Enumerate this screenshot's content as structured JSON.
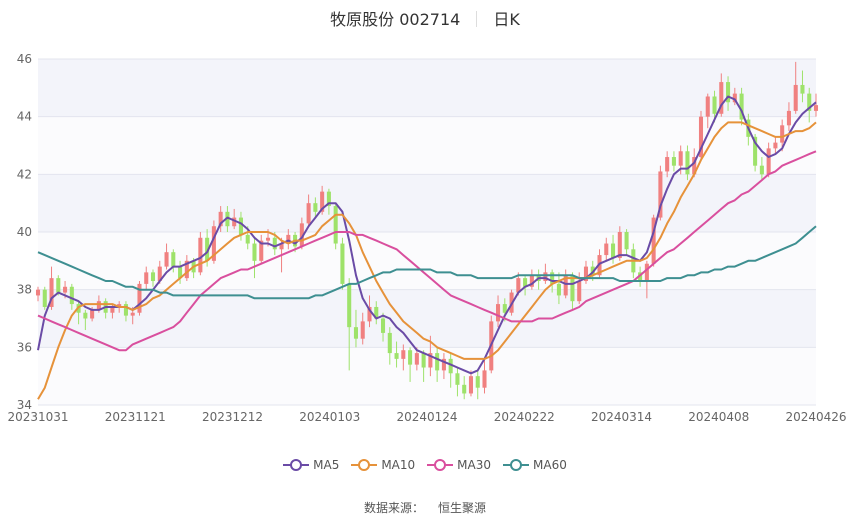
{
  "header": {
    "stock": "牧原股份 002714",
    "period": "日K"
  },
  "footer": {
    "source_label": "数据来源：",
    "source_name": "恒生聚源"
  },
  "chart_data": {
    "type": "candlestick",
    "title": "牧原股份 002714 日K",
    "ylim": [
      34,
      46
    ],
    "yticks": [
      34,
      36,
      38,
      40,
      42,
      44,
      46
    ],
    "xtick_labels": [
      "20231031",
      "20231121",
      "20231212",
      "20240103",
      "20240124",
      "20240222",
      "20240314",
      "20240408",
      "20240426"
    ],
    "up_color": "#f08080",
    "down_color": "#9ee26a",
    "candles": [
      [
        37.8,
        38.0,
        37.6,
        38.1
      ],
      [
        38.0,
        37.4,
        37.3,
        38.1
      ],
      [
        37.4,
        38.4,
        37.3,
        38.8
      ],
      [
        38.4,
        37.9,
        37.8,
        38.5
      ],
      [
        37.9,
        38.1,
        37.7,
        38.3
      ],
      [
        38.1,
        37.5,
        37.3,
        38.2
      ],
      [
        37.5,
        37.2,
        36.8,
        37.6
      ],
      [
        37.2,
        37.0,
        36.6,
        37.3
      ],
      [
        37.0,
        37.3,
        36.9,
        37.4
      ],
      [
        37.3,
        37.6,
        37.2,
        37.8
      ],
      [
        37.6,
        37.2,
        37.0,
        37.7
      ],
      [
        37.2,
        37.4,
        37.0,
        37.5
      ],
      [
        37.4,
        37.5,
        37.2,
        37.6
      ],
      [
        37.5,
        37.1,
        36.9,
        37.6
      ],
      [
        37.1,
        37.2,
        36.8,
        37.4
      ],
      [
        37.2,
        38.2,
        37.1,
        38.3
      ],
      [
        38.2,
        38.6,
        38.0,
        38.8
      ],
      [
        38.6,
        38.3,
        38.1,
        38.7
      ],
      [
        38.3,
        38.8,
        38.2,
        39.0
      ],
      [
        38.8,
        39.3,
        38.7,
        39.6
      ],
      [
        39.3,
        38.8,
        38.6,
        39.4
      ],
      [
        38.8,
        38.4,
        38.2,
        39.0
      ],
      [
        38.4,
        39.0,
        38.3,
        39.2
      ],
      [
        39.0,
        38.6,
        38.4,
        39.1
      ],
      [
        38.6,
        39.8,
        38.5,
        40.0
      ],
      [
        39.8,
        39.0,
        38.8,
        40.1
      ],
      [
        39.0,
        40.2,
        38.9,
        40.4
      ],
      [
        40.2,
        40.7,
        40.0,
        40.9
      ],
      [
        40.7,
        40.2,
        40.0,
        40.9
      ],
      [
        40.2,
        40.5,
        40.1,
        40.8
      ],
      [
        40.5,
        39.9,
        39.7,
        40.7
      ],
      [
        39.9,
        39.6,
        39.4,
        40.2
      ],
      [
        39.6,
        39.0,
        38.4,
        39.8
      ],
      [
        39.0,
        39.7,
        38.9,
        39.9
      ],
      [
        39.7,
        39.8,
        39.5,
        40.1
      ],
      [
        39.8,
        39.4,
        39.2,
        40.0
      ],
      [
        39.4,
        39.6,
        38.6,
        39.8
      ],
      [
        39.6,
        39.9,
        39.4,
        40.1
      ],
      [
        39.9,
        39.5,
        39.3,
        40.0
      ],
      [
        39.5,
        40.3,
        39.4,
        40.5
      ],
      [
        40.3,
        41.0,
        40.2,
        41.3
      ],
      [
        41.0,
        40.7,
        40.5,
        41.2
      ],
      [
        40.7,
        41.4,
        40.6,
        41.6
      ],
      [
        41.4,
        40.9,
        40.6,
        41.5
      ],
      [
        40.9,
        39.6,
        39.4,
        41.0
      ],
      [
        39.6,
        38.2,
        38.0,
        39.8
      ],
      [
        38.2,
        36.7,
        35.2,
        38.4
      ],
      [
        36.7,
        36.3,
        36.0,
        37.3
      ],
      [
        36.3,
        36.9,
        36.1,
        37.2
      ],
      [
        36.9,
        37.4,
        36.7,
        37.8
      ],
      [
        37.4,
        37.0,
        36.8,
        37.6
      ],
      [
        37.0,
        36.5,
        36.2,
        37.2
      ],
      [
        36.5,
        35.8,
        35.4,
        36.7
      ],
      [
        35.8,
        35.6,
        35.3,
        36.2
      ],
      [
        35.6,
        35.9,
        35.2,
        36.1
      ],
      [
        35.9,
        35.4,
        34.8,
        36.0
      ],
      [
        35.4,
        35.8,
        35.2,
        36.0
      ],
      [
        35.8,
        35.3,
        34.8,
        35.9
      ],
      [
        35.3,
        35.8,
        35.0,
        36.4
      ],
      [
        35.8,
        35.2,
        34.8,
        36.0
      ],
      [
        35.2,
        35.6,
        34.9,
        35.8
      ],
      [
        35.6,
        35.1,
        34.6,
        35.8
      ],
      [
        35.1,
        34.7,
        34.3,
        35.3
      ],
      [
        34.7,
        34.4,
        34.2,
        35.0
      ],
      [
        34.4,
        35.0,
        34.3,
        35.2
      ],
      [
        35.0,
        34.6,
        34.2,
        35.2
      ],
      [
        34.6,
        35.2,
        34.4,
        35.6
      ],
      [
        35.2,
        36.9,
        35.1,
        37.1
      ],
      [
        36.9,
        37.5,
        36.7,
        37.8
      ],
      [
        37.5,
        37.2,
        36.9,
        37.7
      ],
      [
        37.2,
        37.9,
        37.1,
        38.0
      ],
      [
        37.9,
        38.4,
        37.8,
        38.6
      ],
      [
        38.4,
        38.1,
        37.8,
        38.5
      ],
      [
        38.1,
        38.5,
        38.0,
        38.7
      ],
      [
        38.5,
        38.3,
        38.0,
        38.7
      ],
      [
        38.3,
        38.6,
        38.2,
        38.9
      ],
      [
        38.6,
        38.2,
        37.9,
        38.7
      ],
      [
        38.2,
        37.8,
        37.5,
        38.6
      ],
      [
        37.8,
        38.5,
        37.7,
        38.7
      ],
      [
        38.5,
        37.6,
        37.3,
        38.6
      ],
      [
        37.6,
        38.3,
        37.5,
        38.6
      ],
      [
        38.3,
        38.8,
        38.2,
        39.0
      ],
      [
        38.8,
        38.5,
        38.3,
        39.0
      ],
      [
        38.5,
        39.2,
        38.4,
        39.4
      ],
      [
        39.2,
        39.6,
        39.0,
        39.8
      ],
      [
        39.6,
        39.1,
        38.9,
        39.9
      ],
      [
        39.1,
        40.0,
        39.0,
        40.2
      ],
      [
        40.0,
        39.4,
        39.2,
        40.1
      ],
      [
        39.4,
        38.6,
        38.4,
        39.6
      ],
      [
        38.6,
        38.3,
        38.1,
        38.8
      ],
      [
        38.3,
        38.9,
        37.7,
        39.0
      ],
      [
        38.9,
        40.5,
        38.8,
        40.6
      ],
      [
        40.5,
        42.1,
        40.4,
        42.3
      ],
      [
        42.1,
        42.6,
        41.9,
        42.8
      ],
      [
        42.6,
        42.3,
        42.1,
        42.8
      ],
      [
        42.3,
        42.8,
        42.0,
        43.0
      ],
      [
        42.8,
        42.0,
        41.8,
        43.0
      ],
      [
        42.0,
        42.6,
        41.9,
        42.9
      ],
      [
        42.6,
        44.0,
        42.5,
        44.2
      ],
      [
        44.0,
        44.7,
        43.6,
        44.8
      ],
      [
        44.7,
        44.1,
        43.8,
        44.9
      ],
      [
        44.1,
        45.2,
        44.0,
        45.5
      ],
      [
        45.2,
        44.5,
        44.2,
        45.4
      ],
      [
        44.5,
        44.8,
        44.4,
        45.0
      ],
      [
        44.8,
        43.9,
        43.7,
        45.0
      ],
      [
        43.9,
        43.3,
        43.0,
        44.1
      ],
      [
        43.3,
        42.3,
        42.1,
        43.4
      ],
      [
        42.3,
        42.0,
        41.8,
        42.6
      ],
      [
        42.0,
        42.9,
        41.9,
        43.1
      ],
      [
        42.9,
        43.1,
        42.7,
        43.3
      ],
      [
        43.1,
        43.7,
        42.8,
        43.9
      ],
      [
        43.7,
        44.2,
        43.5,
        44.5
      ],
      [
        44.2,
        45.1,
        44.1,
        45.9
      ],
      [
        45.1,
        44.8,
        44.5,
        45.6
      ],
      [
        44.8,
        44.2,
        43.8,
        45.0
      ],
      [
        44.2,
        44.4,
        44.0,
        44.8
      ]
    ],
    "series": [
      {
        "name": "MA5",
        "color": "#6a4ba6",
        "values": [
          35.9,
          37.1,
          37.7,
          37.9,
          37.8,
          37.7,
          37.6,
          37.4,
          37.3,
          37.3,
          37.4,
          37.4,
          37.4,
          37.4,
          37.3,
          37.5,
          37.7,
          38.0,
          38.3,
          38.6,
          38.8,
          38.8,
          38.9,
          39.0,
          39.1,
          39.3,
          39.8,
          40.3,
          40.5,
          40.4,
          40.3,
          40.1,
          39.8,
          39.6,
          39.6,
          39.5,
          39.6,
          39.7,
          39.6,
          39.8,
          40.2,
          40.5,
          40.8,
          41.0,
          41.0,
          40.7,
          39.7,
          38.5,
          37.7,
          37.3,
          37.0,
          37.1,
          37.0,
          36.7,
          36.5,
          36.2,
          35.9,
          35.8,
          35.7,
          35.6,
          35.5,
          35.4,
          35.3,
          35.2,
          35.1,
          35.2,
          35.6,
          36.1,
          36.6,
          37.1,
          37.5,
          37.9,
          38.1,
          38.2,
          38.4,
          38.4,
          38.3,
          38.3,
          38.2,
          38.2,
          38.3,
          38.4,
          38.6,
          38.9,
          39.0,
          39.1,
          39.2,
          39.2,
          39.1,
          39.0,
          39.3,
          40.0,
          40.9,
          41.5,
          42.0,
          42.2,
          42.2,
          42.4,
          42.9,
          43.4,
          43.9,
          44.4,
          44.7,
          44.6,
          44.2,
          43.6,
          43.1,
          42.8,
          42.6,
          42.7,
          42.9,
          43.4,
          43.8,
          44.1,
          44.3,
          44.5
        ]
      },
      {
        "name": "MA10",
        "color": "#e6923a",
        "values": [
          34.2,
          34.6,
          35.3,
          36.0,
          36.6,
          37.1,
          37.4,
          37.5,
          37.5,
          37.5,
          37.5,
          37.5,
          37.4,
          37.4,
          37.3,
          37.4,
          37.5,
          37.7,
          37.8,
          38.0,
          38.2,
          38.4,
          38.6,
          38.8,
          38.9,
          39.0,
          39.2,
          39.4,
          39.6,
          39.8,
          39.9,
          40.0,
          40.0,
          40.0,
          40.0,
          39.9,
          39.7,
          39.6,
          39.7,
          39.7,
          39.8,
          39.9,
          40.2,
          40.4,
          40.6,
          40.6,
          40.3,
          39.9,
          39.3,
          38.8,
          38.3,
          37.9,
          37.5,
          37.2,
          36.9,
          36.7,
          36.5,
          36.3,
          36.2,
          36.0,
          35.9,
          35.8,
          35.7,
          35.6,
          35.6,
          35.6,
          35.6,
          35.7,
          35.9,
          36.2,
          36.5,
          36.8,
          37.1,
          37.4,
          37.7,
          38.0,
          38.2,
          38.3,
          38.4,
          38.4,
          38.4,
          38.4,
          38.5,
          38.6,
          38.7,
          38.8,
          38.9,
          39.0,
          39.0,
          39.0,
          39.1,
          39.4,
          39.8,
          40.3,
          40.7,
          41.2,
          41.6,
          42.0,
          42.5,
          42.9,
          43.3,
          43.6,
          43.8,
          43.8,
          43.8,
          43.7,
          43.6,
          43.5,
          43.4,
          43.3,
          43.3,
          43.4,
          43.5,
          43.5,
          43.6,
          43.8
        ]
      },
      {
        "name": "MA30",
        "color": "#d94f9e",
        "values": [
          37.1,
          37.0,
          36.9,
          36.8,
          36.7,
          36.6,
          36.5,
          36.4,
          36.3,
          36.2,
          36.1,
          36.0,
          35.9,
          35.9,
          36.1,
          36.2,
          36.3,
          36.4,
          36.5,
          36.6,
          36.7,
          36.9,
          37.2,
          37.5,
          37.8,
          38.0,
          38.2,
          38.4,
          38.5,
          38.6,
          38.7,
          38.7,
          38.8,
          38.9,
          39.0,
          39.1,
          39.2,
          39.3,
          39.4,
          39.5,
          39.6,
          39.7,
          39.8,
          39.9,
          40.0,
          40.0,
          40.0,
          39.9,
          39.9,
          39.8,
          39.7,
          39.6,
          39.5,
          39.4,
          39.2,
          39.0,
          38.8,
          38.6,
          38.4,
          38.2,
          38.0,
          37.8,
          37.7,
          37.6,
          37.5,
          37.4,
          37.3,
          37.2,
          37.1,
          37.0,
          36.9,
          36.9,
          36.9,
          36.9,
          37.0,
          37.0,
          37.0,
          37.1,
          37.2,
          37.3,
          37.4,
          37.6,
          37.7,
          37.8,
          37.9,
          38.0,
          38.1,
          38.2,
          38.3,
          38.5,
          38.7,
          38.9,
          39.1,
          39.3,
          39.4,
          39.6,
          39.8,
          40.0,
          40.2,
          40.4,
          40.6,
          40.8,
          41.0,
          41.1,
          41.3,
          41.4,
          41.6,
          41.8,
          42.0,
          42.1,
          42.3,
          42.4,
          42.5,
          42.6,
          42.7,
          42.8
        ]
      },
      {
        "name": "MA60",
        "color": "#3e8f91",
        "values": [
          39.3,
          39.2,
          39.1,
          39.0,
          38.9,
          38.8,
          38.7,
          38.6,
          38.5,
          38.4,
          38.3,
          38.3,
          38.2,
          38.1,
          38.1,
          38.0,
          38.0,
          38.0,
          37.9,
          37.9,
          37.8,
          37.8,
          37.8,
          37.8,
          37.8,
          37.8,
          37.8,
          37.8,
          37.8,
          37.8,
          37.8,
          37.8,
          37.7,
          37.7,
          37.7,
          37.7,
          37.7,
          37.7,
          37.7,
          37.7,
          37.7,
          37.8,
          37.8,
          37.9,
          38.0,
          38.1,
          38.2,
          38.2,
          38.3,
          38.4,
          38.5,
          38.6,
          38.6,
          38.7,
          38.7,
          38.7,
          38.7,
          38.7,
          38.7,
          38.6,
          38.6,
          38.6,
          38.5,
          38.5,
          38.5,
          38.4,
          38.4,
          38.4,
          38.4,
          38.4,
          38.4,
          38.5,
          38.5,
          38.5,
          38.5,
          38.5,
          38.5,
          38.5,
          38.5,
          38.5,
          38.4,
          38.4,
          38.4,
          38.4,
          38.4,
          38.4,
          38.3,
          38.3,
          38.3,
          38.3,
          38.3,
          38.3,
          38.3,
          38.4,
          38.4,
          38.4,
          38.5,
          38.5,
          38.6,
          38.6,
          38.7,
          38.7,
          38.8,
          38.8,
          38.9,
          39.0,
          39.0,
          39.1,
          39.2,
          39.3,
          39.4,
          39.5,
          39.6,
          39.8,
          40.0,
          40.2
        ]
      }
    ]
  }
}
